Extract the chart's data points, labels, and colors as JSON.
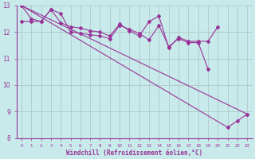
{
  "x": [
    0,
    1,
    2,
    3,
    4,
    5,
    6,
    7,
    8,
    9,
    10,
    11,
    12,
    13,
    14,
    15,
    16,
    17,
    18,
    19,
    20,
    21,
    22,
    23
  ],
  "line1": [
    13.0,
    12.5,
    12.4,
    12.85,
    12.7,
    12.0,
    11.95,
    11.9,
    11.85,
    11.75,
    12.25,
    12.1,
    11.95,
    11.7,
    12.25,
    11.45,
    11.75,
    11.6,
    11.6,
    10.6,
    null,
    null,
    null,
    null
  ],
  "line3": [
    12.4,
    12.4,
    12.4,
    12.85,
    12.35,
    12.2,
    12.15,
    12.05,
    12.0,
    11.85,
    12.3,
    12.05,
    11.85,
    12.4,
    12.6,
    11.4,
    11.8,
    11.65,
    11.65,
    11.65,
    12.2,
    null,
    null,
    null
  ],
  "line4_x": [
    0,
    23
  ],
  "line4_y": [
    13.0,
    8.9
  ],
  "line5_x": [
    0,
    21,
    22,
    23
  ],
  "line5_y": [
    13.0,
    8.4,
    8.65,
    8.9
  ],
  "bg_color": "#c8eaea",
  "grid_color": "#b0c8c8",
  "line_color": "#993399",
  "xlabel": "Windchill (Refroidissement éolien,°C)",
  "xlim": [
    -0.5,
    23.5
  ],
  "ylim": [
    8,
    13
  ],
  "yticks": [
    8,
    9,
    10,
    11,
    12,
    13
  ],
  "xticks": [
    0,
    1,
    2,
    3,
    4,
    5,
    6,
    7,
    8,
    9,
    10,
    11,
    12,
    13,
    14,
    15,
    16,
    17,
    18,
    19,
    20,
    21,
    22,
    23
  ],
  "xticklabels": [
    "0",
    "1",
    "2",
    "3",
    "4",
    "5",
    "6",
    "7",
    "8",
    "9",
    "10",
    "11",
    "12",
    "13",
    "14",
    "15",
    "16",
    "17",
    "18",
    "19",
    "20",
    "21",
    "22",
    "23"
  ]
}
